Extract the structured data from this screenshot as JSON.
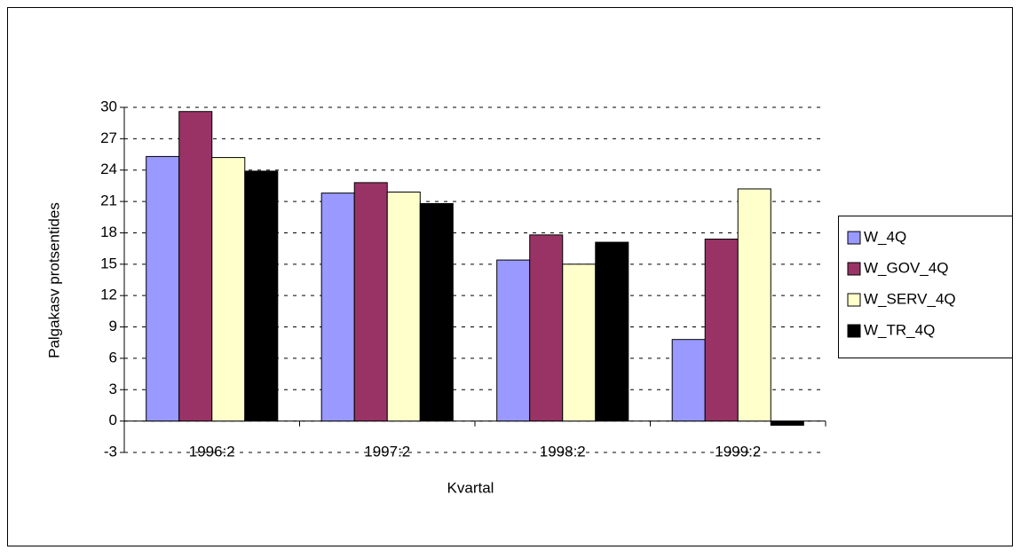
{
  "chart_data": {
    "type": "bar",
    "x_label": "Kvartal",
    "y_label": "Palgakasv protsentides",
    "categories": [
      "1996:2",
      "1997:2",
      "1998:2",
      "1999:2"
    ],
    "series": [
      {
        "name": "W_4Q",
        "color": "#9999ff",
        "values": [
          25.3,
          21.8,
          15.4,
          7.8
        ]
      },
      {
        "name": "W_GOV_4Q",
        "color": "#993366",
        "values": [
          29.6,
          22.8,
          17.8,
          17.4
        ]
      },
      {
        "name": "W_SERV_4Q",
        "color": "#ffffcc",
        "values": [
          25.2,
          21.9,
          15.0,
          22.2
        ]
      },
      {
        "name": "W_TR_4Q",
        "color": "#000000",
        "values": [
          23.9,
          20.8,
          17.1,
          -0.4
        ]
      }
    ],
    "ylim": [
      -3,
      30
    ],
    "yticks": [
      -3,
      0,
      3,
      6,
      9,
      12,
      15,
      18,
      21,
      24,
      27,
      30
    ],
    "grid": true,
    "legend": "right"
  }
}
